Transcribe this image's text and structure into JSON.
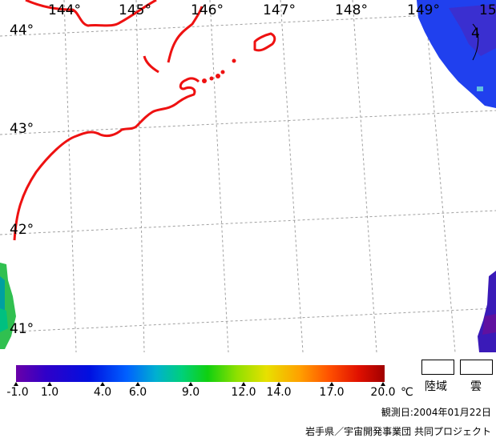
{
  "map": {
    "lon_labels": [
      "144°",
      "145°",
      "146°",
      "147°",
      "148°",
      "149°",
      "15"
    ],
    "lat_labels": [
      "44°",
      "43°",
      "42°",
      "41°"
    ],
    "coast_color": "#ee1111",
    "grid_color": "#a0a0a0",
    "region_marker": "4"
  },
  "colorbar": {
    "ticks": [
      "-1.0",
      "1.0",
      "4.0",
      "6.0",
      "9.0",
      "12.0",
      "14.0",
      "17.0",
      "20.0"
    ],
    "unit": "℃"
  },
  "legend": {
    "land": "陸域",
    "cloud": "雲"
  },
  "footer": {
    "date": "観測日:2004年01月22日",
    "credit": "岩手県／宇宙開発事業団 共同プロジェクト"
  }
}
